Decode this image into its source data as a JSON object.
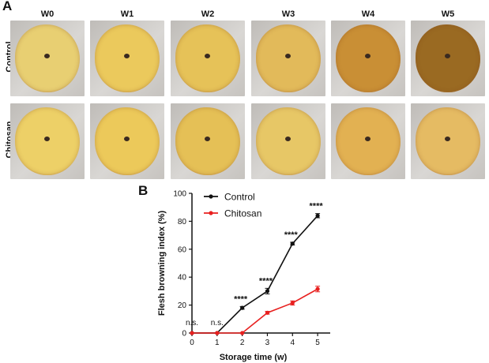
{
  "panel_a": {
    "letter": "A",
    "weeks": [
      "W0",
      "W1",
      "W2",
      "W3",
      "W4",
      "W5"
    ],
    "rows": [
      {
        "label": "Control",
        "browning_colors": [
          "#e8cf72",
          "#ebc95c",
          "#e6c258",
          "#e2ba5a",
          "#c98f35",
          "#9a6a22"
        ]
      },
      {
        "label": "Chitosan",
        "browning_colors": [
          "#edd067",
          "#ecc95a",
          "#e5c056",
          "#e7c766",
          "#e2b152",
          "#e5bb63"
        ]
      }
    ]
  },
  "panel_b": {
    "letter": "B"
  },
  "chart_data": {
    "type": "line",
    "xlabel": "Storage time (w)",
    "ylabel": "Flesh browning index (%)",
    "x": [
      0,
      1,
      2,
      3,
      4,
      5
    ],
    "xticks": [
      "0",
      "1",
      "2",
      "3",
      "4",
      "5"
    ],
    "ylim": [
      0,
      100
    ],
    "yticks": [
      "0",
      "20",
      "40",
      "60",
      "80",
      "100"
    ],
    "legend_position": "top-left",
    "series": [
      {
        "name": "Control",
        "color": "#111111",
        "values": [
          0,
          0,
          18,
          30,
          64,
          84
        ],
        "errors": [
          0,
          0,
          1,
          2,
          1,
          1.5
        ]
      },
      {
        "name": "Chitosan",
        "color": "#e8201f",
        "values": [
          0,
          0,
          0,
          14.5,
          21.5,
          31.5
        ],
        "errors": [
          0,
          0,
          0,
          1,
          1.5,
          2
        ]
      }
    ],
    "annotations": [
      {
        "x": 0,
        "text": "n.s."
      },
      {
        "x": 1,
        "text": "n.s."
      },
      {
        "x": 2,
        "text": "****"
      },
      {
        "x": 3,
        "text": "****"
      },
      {
        "x": 4,
        "text": "****"
      },
      {
        "x": 5,
        "text": "****"
      }
    ],
    "grid": false
  }
}
